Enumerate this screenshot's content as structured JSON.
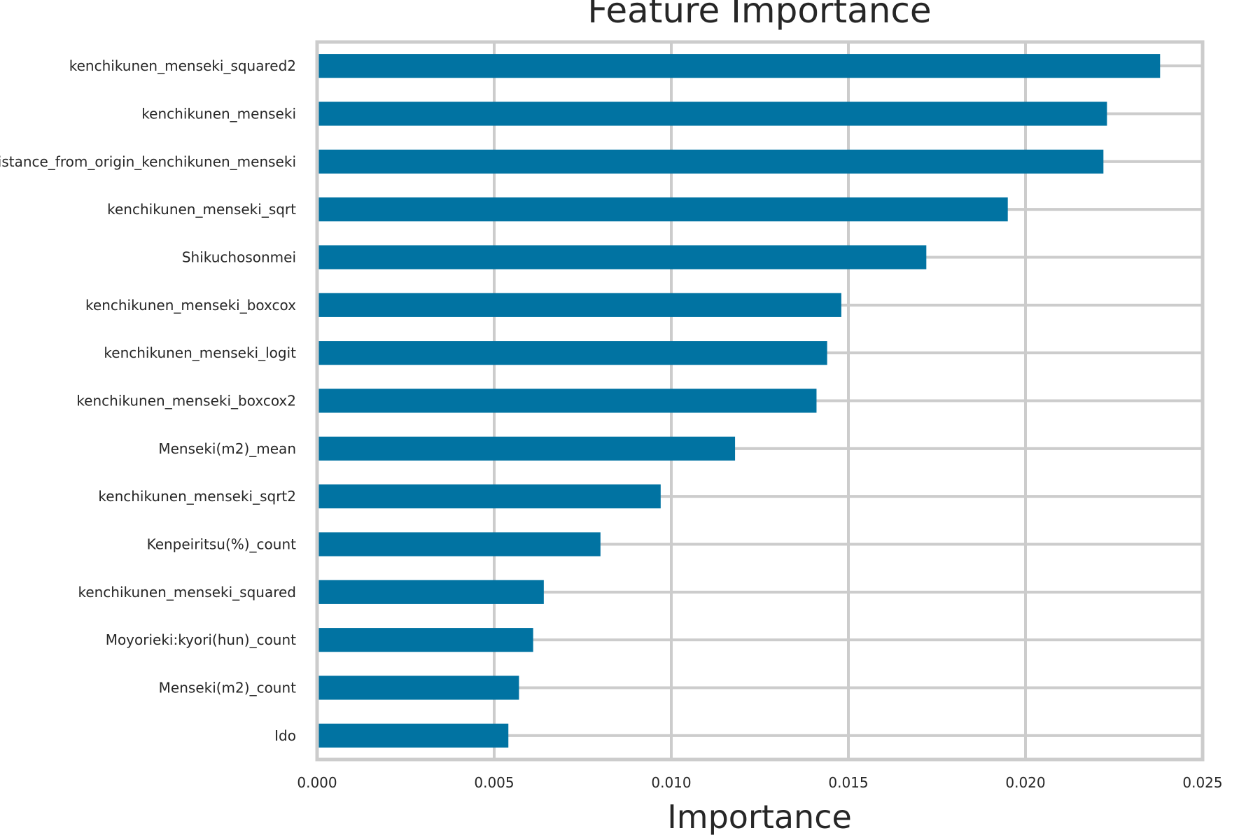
{
  "chart_data": {
    "type": "bar",
    "orientation": "horizontal",
    "title": "Feature Importance",
    "xlabel": "Importance",
    "ylabel": "",
    "xlim": [
      0,
      0.025
    ],
    "xticks": [
      "0.000",
      "0.005",
      "0.010",
      "0.015",
      "0.020",
      "0.025"
    ],
    "grid": true,
    "bar_color": "#0173a2",
    "grid_color": "#cccccc",
    "categories": [
      "kenchikunen_menseki_squared2",
      "kenchikunen_menseki",
      "distance_from_origin_kenchikunen_menseki",
      "kenchikunen_menseki_sqrt",
      "Shikuchosonmei",
      "kenchikunen_menseki_boxcox",
      "kenchikunen_menseki_logit",
      "kenchikunen_menseki_boxcox2",
      "Menseki(m2)_mean",
      "kenchikunen_menseki_sqrt2",
      "Kenpeiritsu(%)_count",
      "kenchikunen_menseki_squared",
      "Moyorieki:kyori(hun)_count",
      "Menseki(m2)_count",
      "Ido"
    ],
    "values": [
      0.0238,
      0.0223,
      0.0222,
      0.0195,
      0.0172,
      0.0148,
      0.0144,
      0.0141,
      0.0118,
      0.0097,
      0.008,
      0.0064,
      0.0061,
      0.0057,
      0.0054
    ]
  }
}
